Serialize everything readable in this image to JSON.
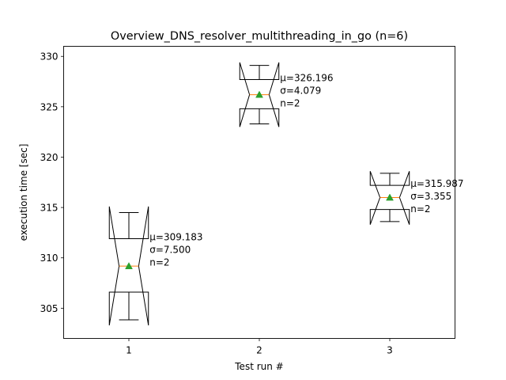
{
  "chart_data": {
    "type": "box",
    "title": "Overview_DNS_resolver_multithreading_in_go (n=6)",
    "xlabel": "Test run #",
    "ylabel": "execution time [sec]",
    "xlim": [
      0.5,
      3.5
    ],
    "ylim": [
      302,
      331
    ],
    "yticks": [
      305,
      310,
      315,
      320,
      325,
      330
    ],
    "xticks": [
      1,
      2,
      3
    ],
    "grid": false,
    "notched": true,
    "boxes": [
      {
        "x": 1,
        "tick_label": "1",
        "whisker_low": 303.85,
        "q1": 306.6,
        "median": 309.18,
        "q3": 311.9,
        "whisker_high": 314.5,
        "notch_low": 303.3,
        "notch_high": 315.1,
        "mean": 309.183,
        "stats_lines": [
          "μ=309.183",
          "σ=7.500",
          "n=2"
        ]
      },
      {
        "x": 2,
        "tick_label": "2",
        "whisker_low": 323.3,
        "q1": 324.8,
        "median": 326.2,
        "q3": 327.7,
        "whisker_high": 329.1,
        "notch_low": 323.0,
        "notch_high": 329.4,
        "mean": 326.196,
        "stats_lines": [
          "μ=326.196",
          "σ=4.079",
          "n=2"
        ]
      },
      {
        "x": 3,
        "tick_label": "3",
        "whisker_low": 313.6,
        "q1": 314.8,
        "median": 315.99,
        "q3": 317.2,
        "whisker_high": 318.4,
        "notch_low": 313.3,
        "notch_high": 318.6,
        "mean": 315.987,
        "stats_lines": [
          "μ=315.987",
          "σ=3.355",
          "n=2"
        ]
      }
    ],
    "colors": {
      "box": "#000000",
      "median": "#ff7f0e",
      "mean": "#2ca02c"
    }
  }
}
